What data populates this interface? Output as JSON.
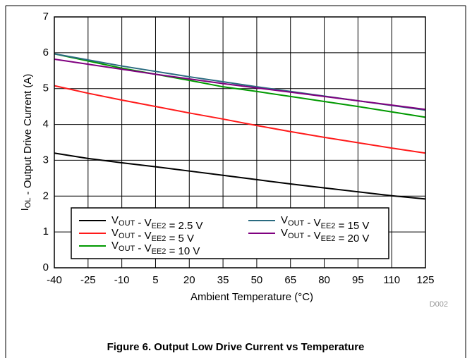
{
  "chart_data": {
    "type": "line",
    "caption": "Figure 6. Output Low Drive Current vs Temperature",
    "xlabel": "Ambient Temperature (°C)",
    "ylabel": "IOL - Output Drive Current (A)",
    "figure_id": "D002",
    "x": [
      -40,
      -25,
      -10,
      5,
      20,
      35,
      50,
      65,
      80,
      95,
      110,
      125
    ],
    "xlim": [
      -40,
      125
    ],
    "xticks": [
      -40,
      -25,
      -10,
      5,
      20,
      35,
      50,
      65,
      80,
      95,
      110,
      125
    ],
    "ylim": [
      0,
      7
    ],
    "yticks": [
      0,
      1,
      2,
      3,
      4,
      5,
      6,
      7
    ],
    "grid": true,
    "legend": "lower left",
    "series": [
      {
        "name": "VOUT - VEE2 = 2.5 V",
        "color": "#000000",
        "values": [
          3.2,
          3.05,
          2.93,
          2.82,
          2.7,
          2.58,
          2.46,
          2.34,
          2.23,
          2.12,
          2.01,
          1.92
        ]
      },
      {
        "name": "VOUT - VEE2 = 5 V",
        "color": "#ff1a1a",
        "values": [
          5.08,
          4.87,
          4.68,
          4.5,
          4.32,
          4.15,
          3.97,
          3.8,
          3.64,
          3.49,
          3.34,
          3.2
        ]
      },
      {
        "name": "VOUT - VEE2 = 10 V",
        "color": "#009900",
        "values": [
          5.97,
          5.77,
          5.57,
          5.4,
          5.23,
          5.05,
          4.92,
          4.78,
          4.64,
          4.5,
          4.35,
          4.2
        ]
      },
      {
        "name": "VOUT - VEE2 = 15 V",
        "color": "#2a6b80",
        "values": [
          5.97,
          5.8,
          5.63,
          5.48,
          5.33,
          5.19,
          5.05,
          4.92,
          4.79,
          4.66,
          4.53,
          4.4
        ]
      },
      {
        "name": "VOUT - VEE2 = 20 V",
        "color": "#800080",
        "values": [
          5.82,
          5.68,
          5.54,
          5.4,
          5.27,
          5.14,
          5.02,
          4.9,
          4.78,
          4.66,
          4.54,
          4.42
        ]
      }
    ]
  }
}
